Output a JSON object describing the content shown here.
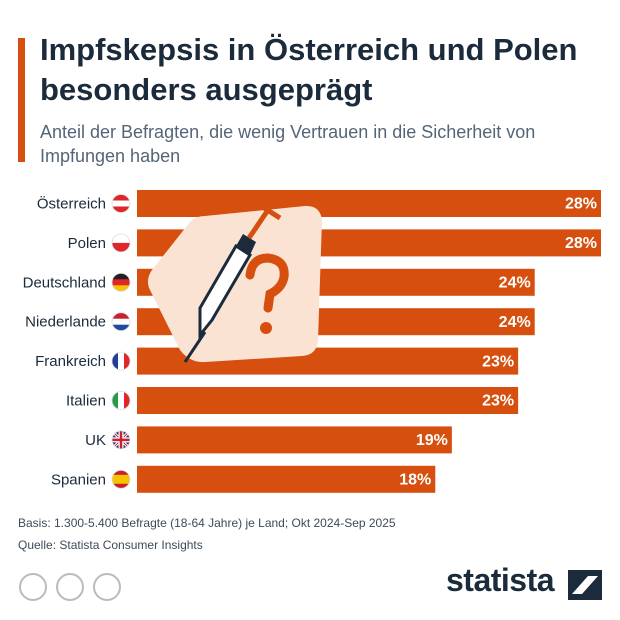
{
  "chart_data": {
    "type": "bar",
    "orientation": "horizontal",
    "title": "Impfskepsis in Österreich und Polen besonders ausgeprägt",
    "subtitle": "Anteil der Befragten, die wenig Vertrauen in die Sicherheit von Impfungen haben",
    "categories": [
      "Österreich",
      "Polen",
      "Deutschland",
      "Niederlande",
      "Frankreich",
      "Italien",
      "UK",
      "Spanien"
    ],
    "values": [
      28,
      28,
      24,
      24,
      23,
      23,
      19,
      18
    ],
    "value_labels": [
      "28%",
      "28%",
      "24%",
      "24%",
      "23%",
      "23%",
      "19%",
      "18%"
    ],
    "color": "#d64f0e",
    "note": "Basis: 1.300-5.400 Befragte (18-64 Jahre) je Land; Okt 2024-Sep 2025",
    "source": "Quelle: Statista Consumer Insights",
    "brand": "statista"
  }
}
